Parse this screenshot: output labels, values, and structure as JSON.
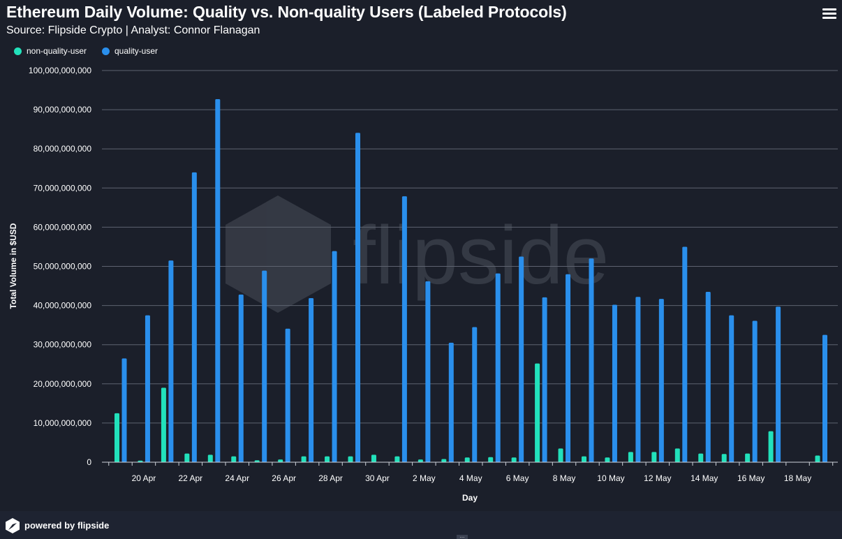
{
  "chart": {
    "title": "Ethereum Daily Volume: Quality vs. Non-quality Users (Labeled Protocols)",
    "subtitle": "Source: Flipside Crypto | Analyst: Connor Flanagan"
  },
  "watermark": {
    "text": "flipside"
  },
  "footer": {
    "text": "powered by flipside",
    "handle": "..."
  },
  "menu": {
    "icon": "hamburger-menu-icon"
  },
  "colors": {
    "background": "#1b1f2a",
    "grid": "#5e6370",
    "non_quality": "#22e1bb",
    "quality": "#2a8fec",
    "axis_text": "#ffffff"
  },
  "chart_data": {
    "type": "bar",
    "title": "Ethereum Daily Volume: Quality vs. Non-quality Users (Labeled Protocols)",
    "subtitle": "Source: Flipside Crypto | Analyst: Connor Flanagan",
    "xlabel": "Day",
    "ylabel": "Total Volume in $USD",
    "ylim": [
      0,
      100000000000
    ],
    "yticks": [
      0,
      10000000000,
      20000000000,
      30000000000,
      40000000000,
      50000000000,
      60000000000,
      70000000000,
      80000000000,
      90000000000,
      100000000000
    ],
    "ytick_labels": [
      "0",
      "10,000,000,000",
      "20,000,000,000",
      "30,000,000,000",
      "40,000,000,000",
      "50,000,000,000",
      "60,000,000,000",
      "70,000,000,000",
      "80,000,000,000",
      "90,000,000,000",
      "100,000,000,000"
    ],
    "categories": [
      "19 Apr",
      "20 Apr",
      "21 Apr",
      "22 Apr",
      "23 Apr",
      "24 Apr",
      "25 Apr",
      "26 Apr",
      "27 Apr",
      "28 Apr",
      "29 Apr",
      "30 Apr",
      "1 May",
      "2 May",
      "3 May",
      "4 May",
      "5 May",
      "6 May",
      "7 May",
      "8 May",
      "9 May",
      "10 May",
      "11 May",
      "12 May",
      "13 May",
      "14 May",
      "15 May",
      "16 May",
      "17 May",
      "18 May",
      "19 May"
    ],
    "xtick_labels": [
      "20 Apr",
      "22 Apr",
      "24 Apr",
      "26 Apr",
      "28 Apr",
      "30 Apr",
      "2 May",
      "4 May",
      "6 May",
      "8 May",
      "10 May",
      "12 May",
      "14 May",
      "16 May",
      "18 May"
    ],
    "legend_position": "top-left",
    "grid": true,
    "series": [
      {
        "name": "non-quality-user",
        "values": [
          12500000000,
          400000000,
          19000000000,
          2200000000,
          1900000000,
          1500000000,
          500000000,
          700000000,
          1500000000,
          1500000000,
          1500000000,
          1900000000,
          1500000000,
          700000000,
          800000000,
          1200000000,
          1300000000,
          1200000000,
          25200000000,
          3500000000,
          1500000000,
          1200000000,
          2600000000,
          2600000000,
          3500000000,
          2200000000,
          2100000000,
          2200000000,
          7900000000,
          0,
          1700000000
        ]
      },
      {
        "name": "quality-user",
        "values": [
          26500000000,
          37500000000,
          51500000000,
          74000000000,
          92700000000,
          42800000000,
          48900000000,
          34100000000,
          41900000000,
          53900000000,
          84100000000,
          0,
          67900000000,
          46200000000,
          30500000000,
          34500000000,
          48200000000,
          52500000000,
          42100000000,
          48000000000,
          52000000000,
          40200000000,
          42200000000,
          41700000000,
          55000000000,
          43500000000,
          37500000000,
          36100000000,
          39700000000,
          0,
          32500000000
        ]
      }
    ]
  }
}
